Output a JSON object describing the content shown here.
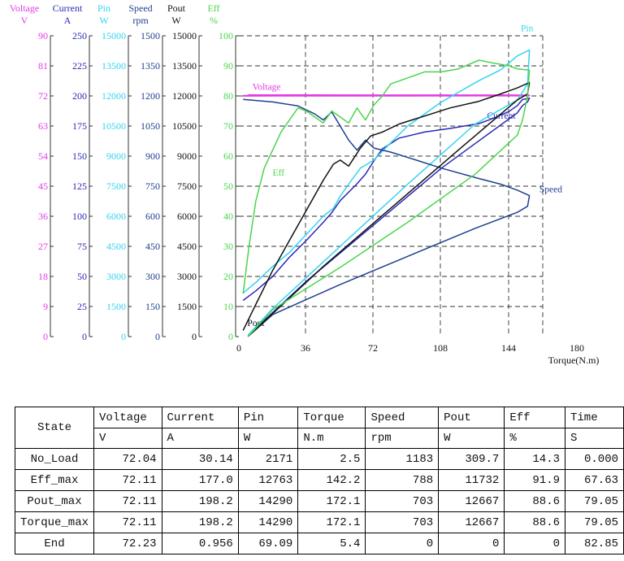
{
  "chart_data": {
    "type": "line",
    "xlabel": "Torque(N.m)",
    "x_ticks": [
      "0",
      "36",
      "72",
      "108",
      "144",
      "180"
    ],
    "xlim": [
      0,
      180
    ],
    "y_axes": [
      {
        "key": "voltage",
        "name": "Voltage",
        "unit": "V",
        "color": "#e33be3",
        "ylim": [
          0,
          90
        ],
        "ticks": [
          "0",
          "9",
          "18",
          "27",
          "36",
          "45",
          "54",
          "63",
          "72",
          "81",
          "90"
        ]
      },
      {
        "key": "current",
        "name": "Current",
        "unit": "A",
        "color": "#2a2ab4",
        "ylim": [
          0,
          250
        ],
        "ticks": [
          "0",
          "25",
          "50",
          "75",
          "100",
          "125",
          "150",
          "175",
          "200",
          "225",
          "250"
        ]
      },
      {
        "key": "pin",
        "name": "Pin",
        "unit": "W",
        "color": "#33d4f0",
        "ylim": [
          0,
          15000
        ],
        "ticks": [
          "0",
          "1500",
          "3000",
          "4500",
          "6000",
          "7500",
          "9000",
          "10500",
          "12000",
          "13500",
          "15000"
        ]
      },
      {
        "key": "speed",
        "name": "Speed",
        "unit": "rpm",
        "color": "#1f3f8f",
        "ylim": [
          0,
          1500
        ],
        "ticks": [
          "0",
          "150",
          "300",
          "450",
          "600",
          "750",
          "900",
          "1050",
          "1200",
          "1350",
          "1500"
        ]
      },
      {
        "key": "pout",
        "name": "Pout",
        "unit": "W",
        "color": "#111111",
        "ylim": [
          0,
          15000
        ],
        "ticks": [
          "0",
          "1500",
          "3000",
          "4500",
          "6000",
          "7500",
          "9000",
          "10500",
          "12000",
          "13500",
          "15000"
        ]
      },
      {
        "key": "eff",
        "name": "Eff",
        "unit": "%",
        "color": "#4cd44c",
        "ylim": [
          0,
          100
        ],
        "ticks": [
          "0",
          "10",
          "20",
          "30",
          "40",
          "50",
          "60",
          "70",
          "80",
          "90",
          "100"
        ]
      }
    ],
    "grid": true,
    "series": [
      {
        "name": "Voltage",
        "axis": "voltage",
        "color": "#e33be3",
        "label_at": [
          8,
          82
        ],
        "x": [
          2.5,
          20,
          60,
          100,
          142,
          172,
          165,
          140,
          80,
          5.4
        ],
        "y": [
          72.04,
          72.1,
          72.1,
          72.1,
          72.11,
          72.11,
          72.2,
          72.2,
          72.2,
          72.23
        ]
      },
      {
        "name": "Current",
        "axis": "current",
        "color": "#2a2ab4",
        "label_at": [
          147,
          72.5
        ],
        "x": [
          2.5,
          10,
          20,
          30,
          40,
          50,
          55,
          60,
          65,
          70,
          75,
          80,
          85,
          95,
          110,
          125,
          142.2,
          150,
          160,
          165,
          168,
          172.1,
          171,
          168,
          165,
          120,
          80,
          40,
          5.4
        ],
        "y": [
          30.1,
          38,
          50,
          66,
          80,
          95,
          103,
          113,
          120,
          127,
          135,
          146,
          156,
          165,
          170,
          173,
          177,
          181,
          187,
          192,
          197,
          198.2,
          195,
          192,
          186,
          140,
          93,
          46,
          0.956
        ]
      },
      {
        "name": "Pin",
        "axis": "pin",
        "color": "#33d4f0",
        "label_at": [
          167,
          101.5
        ],
        "x": [
          2.5,
          10,
          20,
          30,
          40,
          50,
          56,
          60,
          65,
          72,
          80,
          88,
          100,
          120,
          142.2,
          155,
          165,
          172.1,
          171,
          168,
          165,
          140,
          100,
          60,
          20,
          5.4
        ],
        "y": [
          2171,
          2700,
          3500,
          4200,
          5100,
          6000,
          6400,
          7000,
          7600,
          8400,
          8800,
          9500,
          10500,
          11700,
          12763,
          13300,
          14000,
          14290,
          12600,
          12200,
          11800,
          10600,
          7600,
          4500,
          1400,
          69.1
        ]
      },
      {
        "name": "Speed",
        "axis": "speed",
        "color": "#1f3f8f",
        "label_at": [
          178,
          48
        ],
        "x": [
          2.5,
          20,
          35,
          45,
          50,
          55,
          60,
          65,
          70,
          75,
          80,
          90,
          105,
          120,
          142.2,
          155,
          165,
          172.1,
          171,
          165,
          140,
          100,
          60,
          20,
          5.4
        ],
        "y": [
          1183,
          1170,
          1150,
          1110,
          1080,
          1120,
          1050,
          980,
          930,
          980,
          940,
          920,
          880,
          840,
          788,
          760,
          730,
          703,
          650,
          620,
          540,
          400,
          260,
          110,
          0
        ]
      },
      {
        "name": "Pout",
        "axis": "pout",
        "color": "#111111",
        "label_at": [
          5,
          3.5
        ],
        "x": [
          2.5,
          10,
          20,
          30,
          40,
          50,
          56,
          60,
          65,
          72,
          78,
          85,
          95,
          110,
          125,
          142.2,
          155,
          165,
          172.1,
          171,
          165,
          130,
          90,
          50,
          5.4
        ],
        "y": [
          310,
          1600,
          3300,
          4800,
          6300,
          7800,
          8600,
          8800,
          8500,
          9400,
          10000,
          10200,
          10600,
          11000,
          11400,
          11732,
          12100,
          12400,
          12667,
          12100,
          11800,
          9300,
          6400,
          3500,
          0
        ]
      },
      {
        "name": "Eff",
        "axis": "eff",
        "color": "#4cd44c",
        "label_at": [
          20,
          53.5
        ],
        "x": [
          2.5,
          6,
          10,
          15,
          20,
          25,
          30,
          35,
          40,
          45,
          50,
          55,
          60,
          65,
          70,
          75,
          80,
          85,
          90,
          100,
          110,
          120,
          130,
          142.2,
          150,
          160,
          165,
          172.1,
          171,
          168,
          165,
          140,
          100,
          60,
          20,
          5.4
        ],
        "y": [
          14.3,
          30,
          45,
          56,
          62,
          68,
          72,
          76,
          75,
          73,
          71,
          75,
          73,
          71,
          76,
          72,
          77,
          80,
          84,
          86,
          88,
          88,
          89,
          91.9,
          91,
          90,
          89,
          88.6,
          80,
          72,
          67,
          54,
          38,
          23,
          9,
          0
        ]
      }
    ],
    "table": {
      "headers": [
        "State",
        "Voltage",
        "Current",
        "Pin",
        "Torque",
        "Speed",
        "Pout",
        "Eff",
        "Time"
      ],
      "units": [
        "V",
        "A",
        "W",
        "N.m",
        "rpm",
        "W",
        "%",
        "S"
      ],
      "rows": [
        [
          "No_Load",
          "72.04",
          "30.14",
          "2171",
          "2.5",
          "1183",
          "309.7",
          "14.3",
          "0.000"
        ],
        [
          "Eff_max",
          "72.11",
          "177.0",
          "12763",
          "142.2",
          "788",
          "11732",
          "91.9",
          "67.63"
        ],
        [
          "Pout_max",
          "72.11",
          "198.2",
          "14290",
          "172.1",
          "703",
          "12667",
          "88.6",
          "79.05"
        ],
        [
          "Torque_max",
          "72.11",
          "198.2",
          "14290",
          "172.1",
          "703",
          "12667",
          "88.6",
          "79.05"
        ],
        [
          "End",
          "72.23",
          "0.956",
          "69.09",
          "5.4",
          "0",
          "0",
          "0",
          "82.85"
        ]
      ]
    }
  }
}
